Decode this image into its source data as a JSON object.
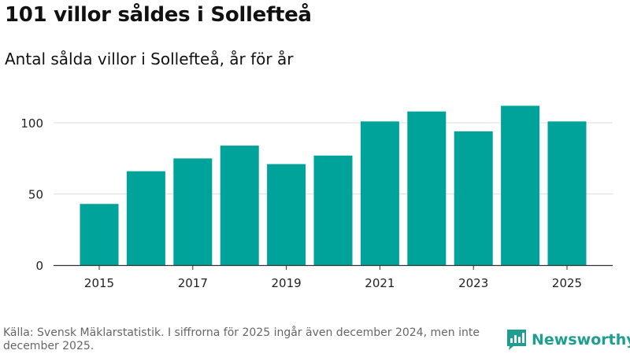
{
  "header": {
    "title": "101 villor såldes i Sollefteå",
    "subtitle": "Antal sålda villor i Sollefteå, år för år"
  },
  "footer": {
    "source": "Källa: Svensk Mäklarstatistik. I siffrorna för 2025 ingår även december 2024, men inte december 2025.",
    "brand": "Newsworthy"
  },
  "colors": {
    "bar": "#00a39a",
    "grid": "#dddddd",
    "axis": "#333333",
    "brand": "#1e9e8f"
  },
  "chart_data": {
    "type": "bar",
    "title": "101 villor såldes i Sollefteå",
    "subtitle": "Antal sålda villor i Sollefteå, år för år",
    "categories": [
      2015,
      2016,
      2017,
      2018,
      2019,
      2020,
      2021,
      2022,
      2023,
      2024,
      2025
    ],
    "values": [
      43,
      66,
      75,
      84,
      71,
      77,
      101,
      108,
      94,
      112,
      101
    ],
    "x_tick_labels": [
      "2015",
      "2017",
      "2019",
      "2021",
      "2023",
      "2025"
    ],
    "y_ticks": [
      0,
      50,
      100
    ],
    "ylim": [
      0,
      120
    ],
    "xlabel": "",
    "ylabel": "",
    "grid": true
  }
}
